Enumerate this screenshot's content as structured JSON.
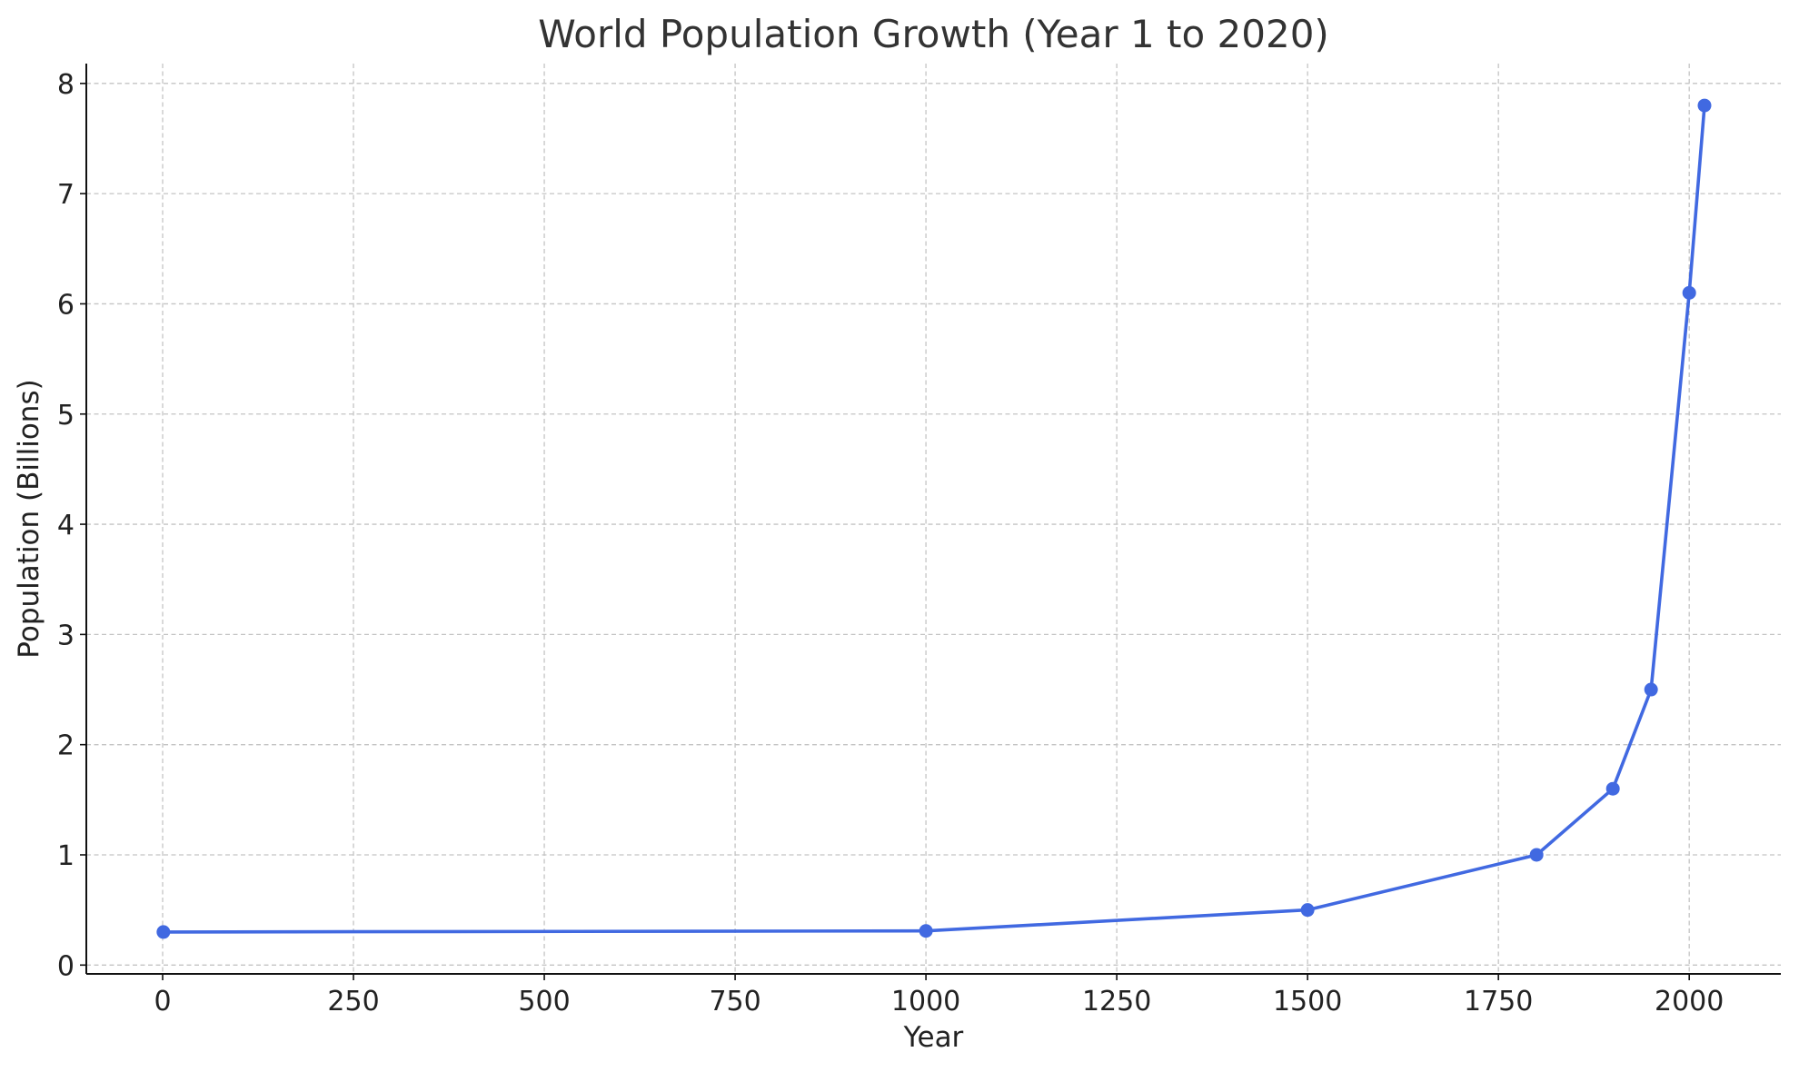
{
  "chart_data": {
    "type": "line",
    "title": "World Population Growth (Year 1 to 2020)",
    "xlabel": "Year",
    "ylabel": "Population (Billions)",
    "xlim": [
      -100,
      2120
    ],
    "ylim": [
      -0.08,
      8.18
    ],
    "x_ticks": [
      0,
      250,
      500,
      750,
      1000,
      1250,
      1500,
      1750,
      2000
    ],
    "x_tick_labels": [
      "0",
      "250",
      "500",
      "750",
      "1000",
      "1250",
      "1500",
      "1750",
      "2000"
    ],
    "y_ticks": [
      0,
      1,
      2,
      3,
      4,
      5,
      6,
      7,
      8
    ],
    "y_tick_labels": [
      "0",
      "1",
      "2",
      "3",
      "4",
      "5",
      "6",
      "7",
      "8"
    ],
    "grid": true,
    "legend": "none",
    "color": "#4169e1",
    "series": [
      {
        "x": [
          1,
          1000,
          1500,
          1800,
          1900,
          1950,
          2000,
          2020
        ],
        "y": [
          0.3,
          0.31,
          0.5,
          1.0,
          1.6,
          2.5,
          6.1,
          7.8
        ]
      }
    ]
  }
}
